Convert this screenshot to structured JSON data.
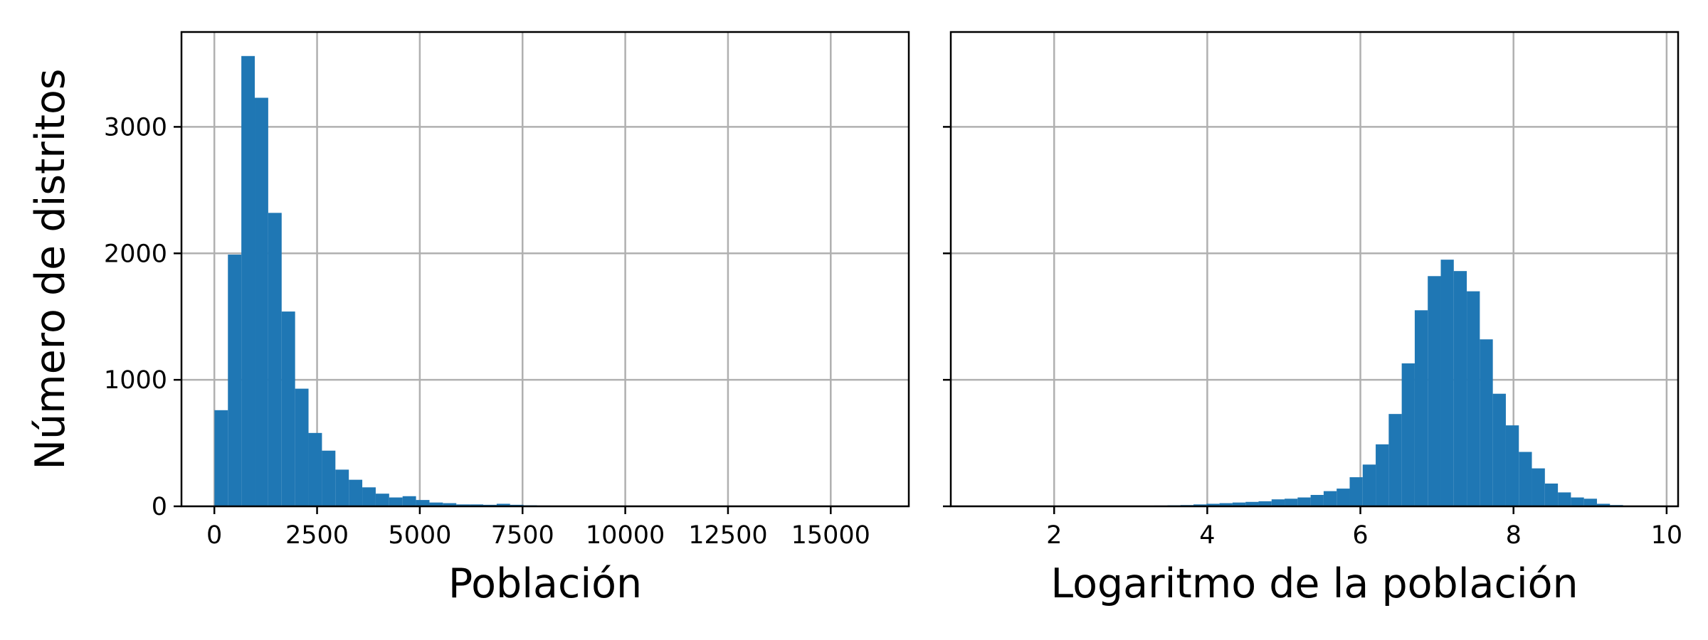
{
  "colors": {
    "bar": "#1f77b4",
    "grid": "#b0b0b0",
    "axis": "#000000",
    "background": "#ffffff"
  },
  "chart_data": [
    {
      "type": "bar",
      "subtype": "histogram",
      "xlabel": "Población",
      "ylabel": "Número de distritos",
      "xlim": [
        -800,
        16900
      ],
      "ylim": [
        0,
        3750
      ],
      "grid": true,
      "xticks": [
        0,
        2500,
        5000,
        7500,
        10000,
        12500,
        15000
      ],
      "xtick_labels": [
        "0",
        "2500",
        "5000",
        "7500",
        "10000",
        "12500",
        "15000"
      ],
      "yticks": [
        0,
        1000,
        2000,
        3000
      ],
      "ytick_labels": [
        "0",
        "1000",
        "2000",
        "3000"
      ],
      "bin_edges": [
        3,
        330,
        657,
        984,
        1311,
        1638,
        1965,
        2292,
        2619,
        2946,
        3273,
        3600,
        3927,
        4254,
        4581,
        4908,
        5235,
        5562,
        5889,
        6216,
        6543,
        6870,
        7197,
        7524,
        7851,
        8178,
        8505,
        8832,
        9159,
        9486,
        9813,
        10140,
        10467,
        10794,
        11121,
        11448,
        11775,
        12102,
        12429,
        12756,
        13083,
        13410,
        13737,
        14064,
        14391,
        14718,
        15045,
        15372,
        15699,
        16026,
        16353
      ],
      "values": [
        760,
        1990,
        3560,
        3230,
        2320,
        1540,
        930,
        580,
        440,
        290,
        210,
        150,
        100,
        70,
        80,
        50,
        30,
        25,
        15,
        15,
        12,
        20,
        12,
        8,
        6,
        5,
        4,
        3,
        3,
        2,
        2,
        2,
        1,
        1,
        1,
        1,
        1,
        1,
        1,
        1,
        1,
        1,
        1,
        1,
        1,
        1,
        1,
        1,
        1,
        1
      ]
    },
    {
      "type": "bar",
      "subtype": "histogram",
      "xlabel": "Logaritmo de la población",
      "ylabel": "",
      "xlim": [
        0.65,
        10.15
      ],
      "ylim": [
        0,
        3750
      ],
      "grid": true,
      "shared_y": true,
      "xticks": [
        2,
        4,
        6,
        8,
        10
      ],
      "xtick_labels": [
        "2",
        "4",
        "6",
        "8",
        "10"
      ],
      "bin_edges": [
        1.1,
        1.27,
        1.44,
        1.61,
        1.78,
        1.95,
        2.12,
        2.29,
        2.46,
        2.63,
        2.8,
        2.97,
        3.14,
        3.31,
        3.48,
        3.65,
        3.82,
        3.99,
        4.16,
        4.33,
        4.5,
        4.67,
        4.84,
        5.01,
        5.18,
        5.35,
        5.52,
        5.69,
        5.86,
        6.03,
        6.2,
        6.37,
        6.54,
        6.71,
        6.88,
        7.05,
        7.22,
        7.39,
        7.56,
        7.73,
        7.9,
        8.07,
        8.24,
        8.41,
        8.58,
        8.75,
        8.92,
        9.09,
        9.26,
        9.43,
        9.6
      ],
      "values": [
        1,
        0,
        0,
        0,
        0,
        0,
        0,
        1,
        0,
        1,
        1,
        3,
        5,
        6,
        8,
        10,
        15,
        20,
        25,
        30,
        35,
        40,
        55,
        60,
        70,
        90,
        120,
        140,
        230,
        330,
        490,
        730,
        1130,
        1550,
        1820,
        1950,
        1860,
        1700,
        1320,
        890,
        640,
        430,
        300,
        180,
        110,
        70,
        60,
        20,
        10,
        5
      ]
    }
  ]
}
